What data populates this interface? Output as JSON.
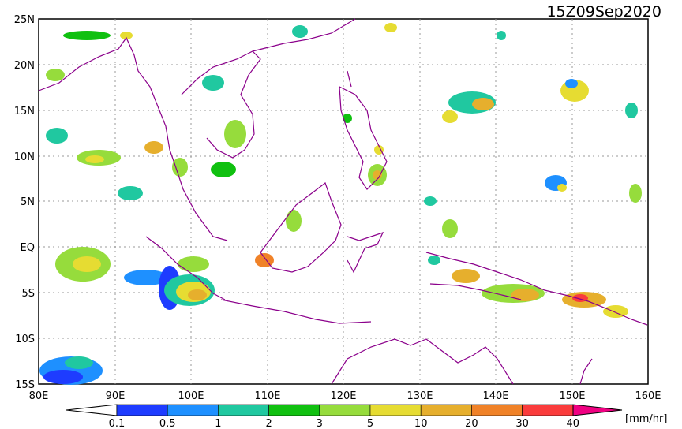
{
  "title": "15Z09Sep2020",
  "y_axis_labels": [
    "25N",
    "20N",
    "15N",
    "10N",
    "5N",
    "EQ",
    "5S",
    "10S",
    "15S"
  ],
  "x_axis_labels": [
    "80E",
    "90E",
    "100E",
    "110E",
    "120E",
    "130E",
    "140E",
    "150E",
    "160E"
  ],
  "colorbar": {
    "unit": "[mm/hr]",
    "tick_labels": [
      "0.1",
      "0.5",
      "1",
      "2",
      "3",
      "5",
      "10",
      "20",
      "30",
      "40"
    ],
    "colors": [
      "#1e3cff",
      "#1e90ff",
      "#20c8a0",
      "#10c010",
      "#96dc3c",
      "#e6dc32",
      "#e6af2d",
      "#f08228",
      "#fa3c3c",
      "#f00082"
    ]
  }
}
